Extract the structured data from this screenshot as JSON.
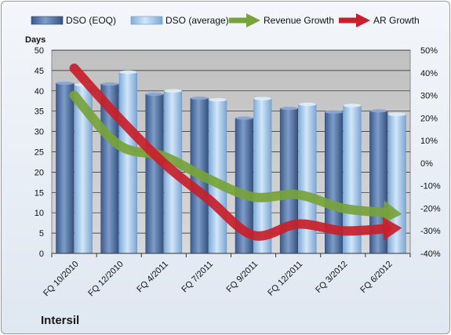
{
  "chart_data": {
    "type": "bar",
    "title": "",
    "categories": [
      "FQ 10/2010",
      "FQ 12/2010",
      "FQ 4/2011",
      "FQ 7/2011",
      "FQ 9/2011",
      "FQ 12/2011",
      "FQ 3/2012",
      "FQ 6/2012"
    ],
    "y_left": {
      "label": "Days",
      "ylim": [
        0,
        50
      ],
      "ticks": [
        0,
        5,
        10,
        15,
        20,
        25,
        30,
        35,
        40,
        45,
        50
      ]
    },
    "y_right": {
      "ylim": [
        -40,
        50
      ],
      "ticks": [
        "-40%",
        "-30%",
        "-20%",
        "-10%",
        "0%",
        "10%",
        "20%",
        "30%",
        "40%",
        "50%"
      ]
    },
    "series": [
      {
        "name": "DSO (EOQ)",
        "type": "bar",
        "axis": "left",
        "color": "#4f71a6",
        "values": [
          41.9,
          41.7,
          39.2,
          38.2,
          33.3,
          35.7,
          34.8,
          35.1
        ]
      },
      {
        "name": "DSO (average)",
        "type": "bar",
        "axis": "left",
        "color": "#a6c8ec",
        "values": [
          41.5,
          44.6,
          40.0,
          37.8,
          38.1,
          36.7,
          36.4,
          34.2
        ]
      },
      {
        "name": "Revenue Growth",
        "type": "line",
        "axis": "right",
        "color": "#77a33a",
        "values": [
          30.0,
          8.0,
          3.0,
          -7.0,
          -15.0,
          -14.0,
          -20.0,
          -22.0
        ]
      },
      {
        "name": "AR Growth",
        "type": "line",
        "axis": "right",
        "color": "#c8202a",
        "values": [
          42.0,
          20.0,
          0.0,
          -16.0,
          -32.0,
          -27.0,
          -30.0,
          -29.0
        ]
      }
    ],
    "grid": true,
    "legend": "top"
  },
  "company": "Intersil"
}
